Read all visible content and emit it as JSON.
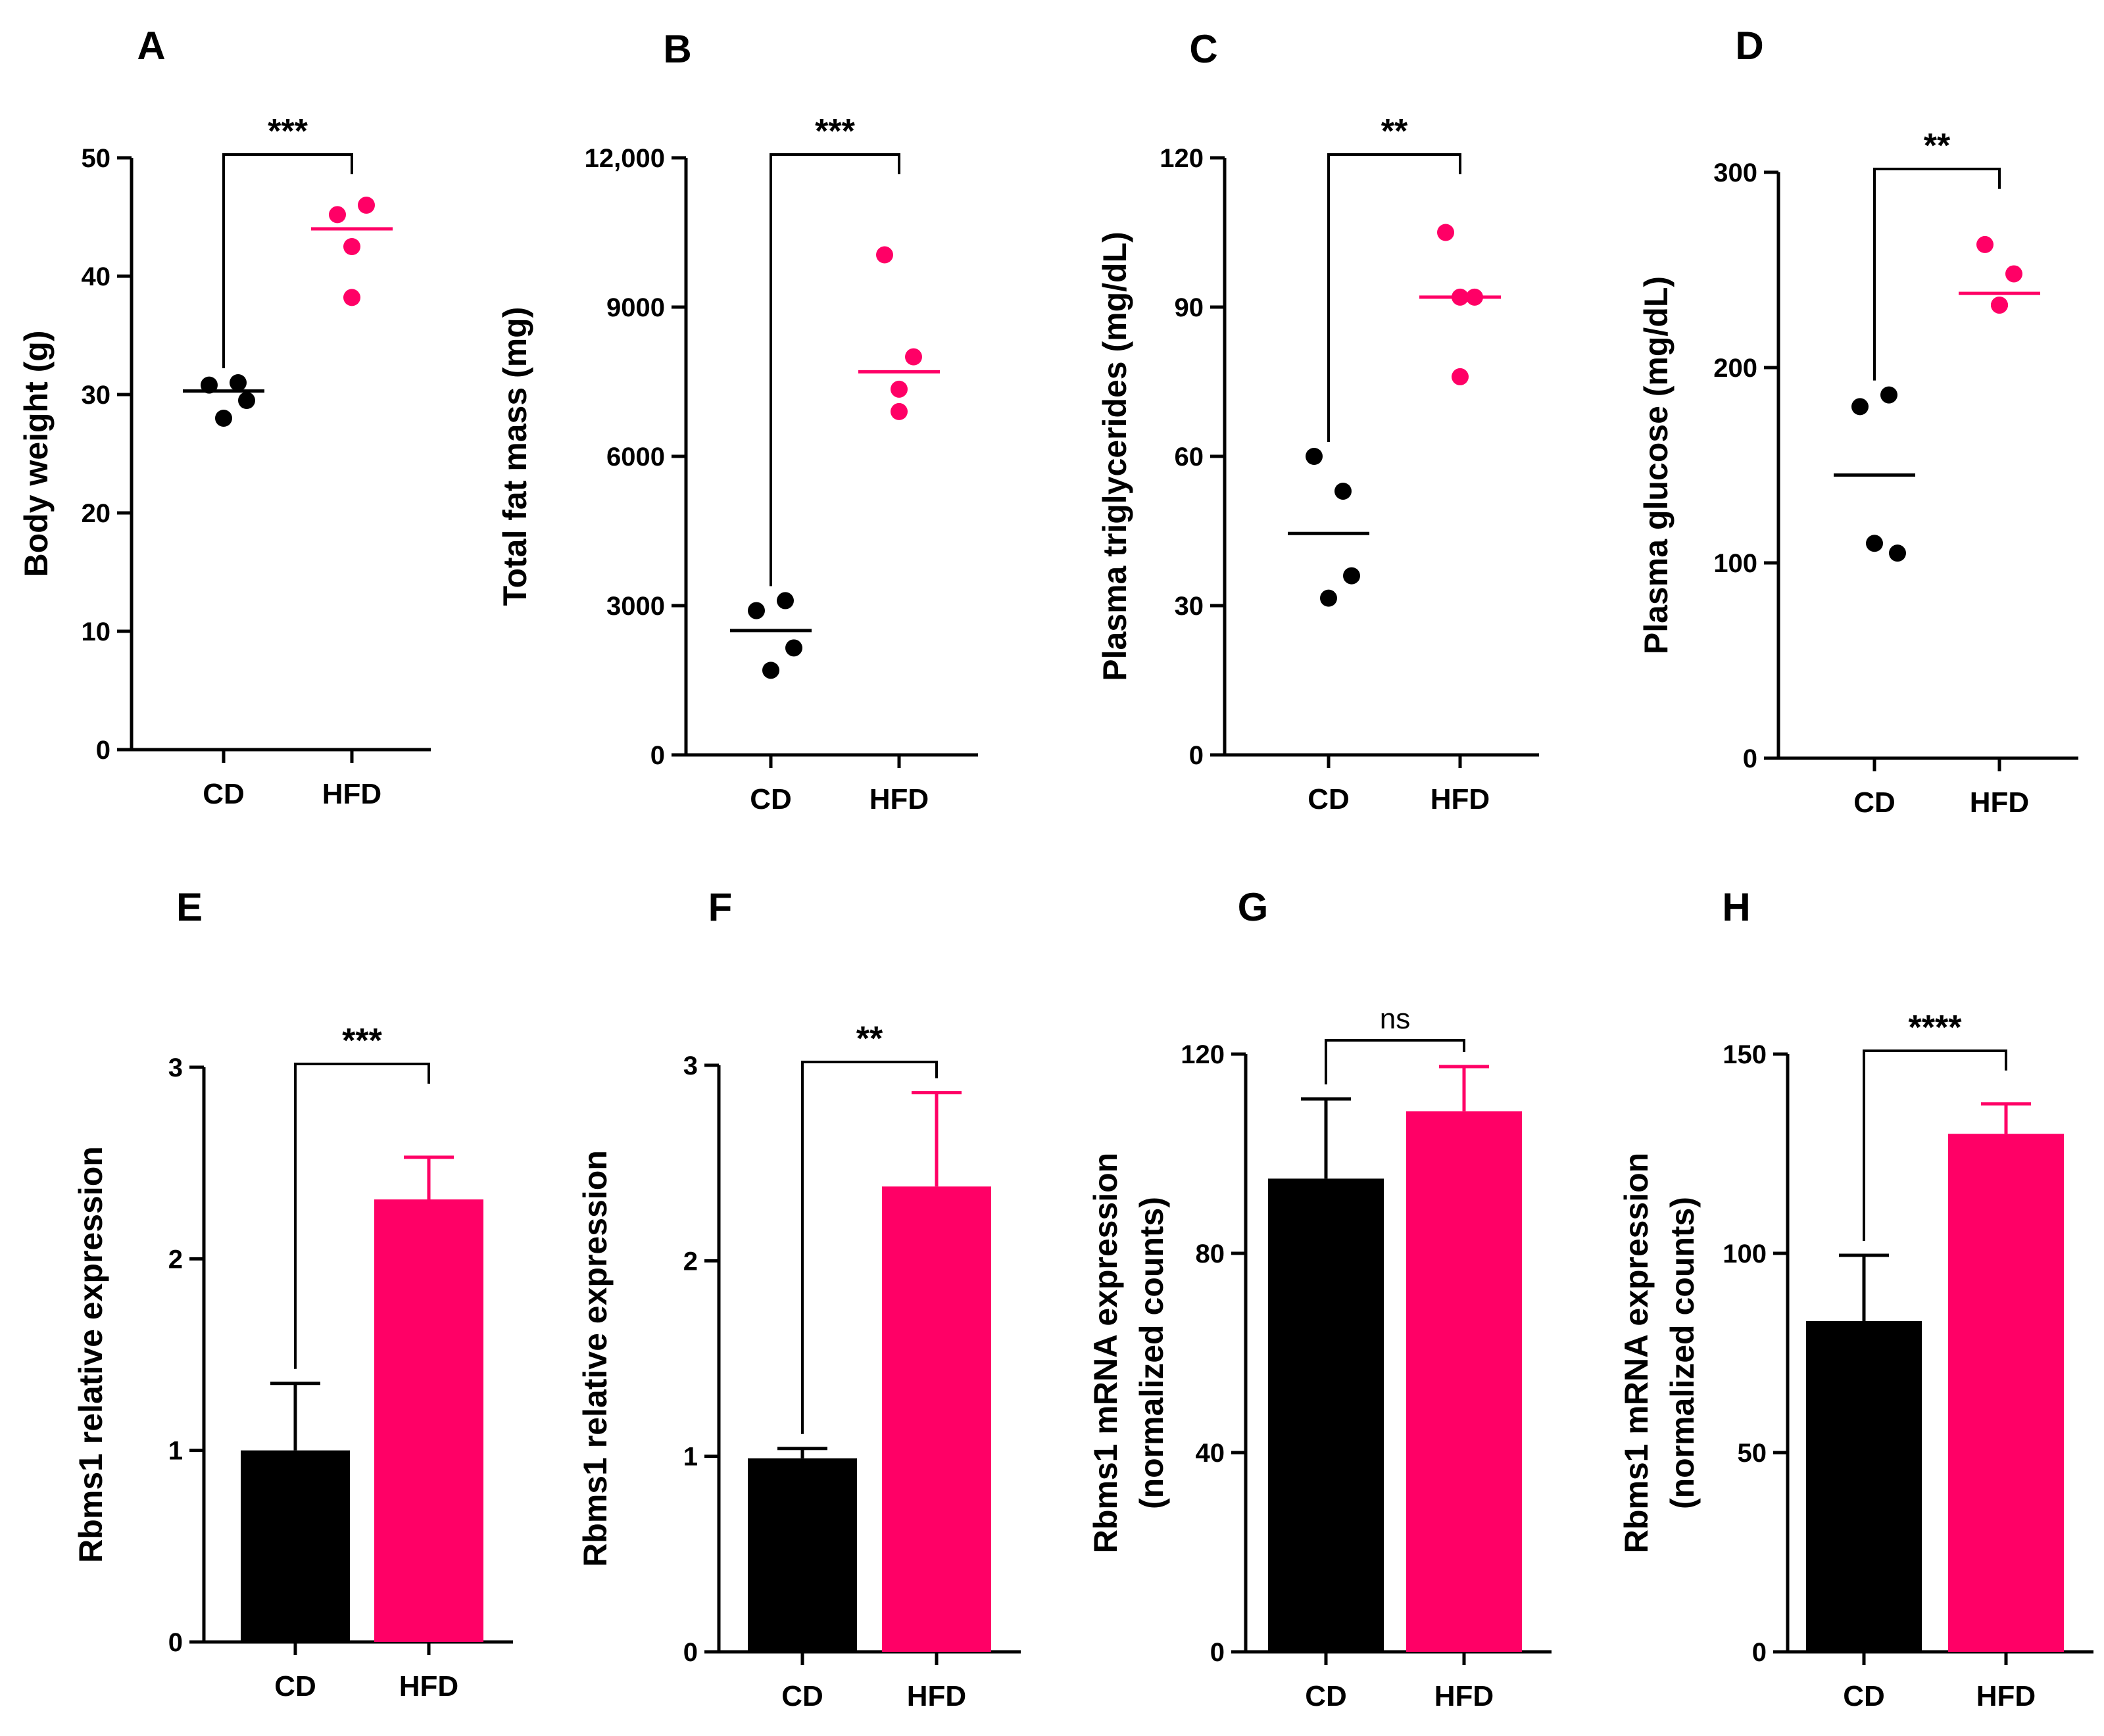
{
  "colors": {
    "cd": "#000000",
    "hfd": "#ff0066",
    "axis": "#000000"
  },
  "chart_data": [
    {
      "id": "A",
      "type": "scatter",
      "ylabel": "Body weight (g)",
      "categories": [
        "CD",
        "HFD"
      ],
      "yticks": [
        "0",
        "10",
        "20",
        "30",
        "40",
        "50"
      ],
      "ylim": [
        0,
        50
      ],
      "tick_values": [
        0,
        10,
        20,
        30,
        40,
        50
      ],
      "points": [
        [
          30.8,
          31.0,
          29.5,
          28.0
        ],
        [
          45.2,
          46.0,
          42.5,
          38.2
        ]
      ],
      "means": [
        30.3,
        44.0
      ],
      "significance": "***"
    },
    {
      "id": "B",
      "type": "scatter",
      "ylabel": "Total fat mass (mg)",
      "categories": [
        "CD",
        "HFD"
      ],
      "yticks": [
        "0",
        "3000",
        "6000",
        "9000",
        "12,000"
      ],
      "ylim": [
        0,
        12000
      ],
      "tick_values": [
        0,
        3000,
        6000,
        9000,
        12000
      ],
      "points": [
        [
          2900,
          3100,
          2150,
          1700
        ],
        [
          10050,
          8000,
          7350,
          6900
        ]
      ],
      "means": [
        2500,
        7700
      ],
      "significance": "***"
    },
    {
      "id": "C",
      "type": "scatter",
      "ylabel": "Plasma triglycerides (mg/dL)",
      "categories": [
        "CD",
        "HFD"
      ],
      "yticks": [
        "0",
        "30",
        "60",
        "90",
        "120"
      ],
      "ylim": [
        0,
        120
      ],
      "tick_values": [
        0,
        30,
        60,
        90,
        120
      ],
      "points": [
        [
          60,
          53,
          36,
          31.5
        ],
        [
          105,
          92,
          92,
          76
        ]
      ],
      "means": [
        44.5,
        92
      ],
      "significance": "**"
    },
    {
      "id": "D",
      "type": "scatter",
      "ylabel": "Plasma glucose (mg/dL)",
      "categories": [
        "CD",
        "HFD"
      ],
      "yticks": [
        "0",
        "100",
        "200",
        "300"
      ],
      "ylim": [
        0,
        300
      ],
      "tick_values": [
        0,
        100,
        200,
        300
      ],
      "points": [
        [
          180,
          186,
          105,
          110
        ],
        [
          263,
          248,
          232,
          232
        ]
      ],
      "means": [
        145,
        238
      ],
      "significance": "**"
    },
    {
      "id": "E",
      "type": "bar",
      "ylabel": "Rbms1 relative expression",
      "categories": [
        "CD",
        "HFD"
      ],
      "yticks": [
        "0",
        "1",
        "2",
        "3"
      ],
      "ylim": [
        0,
        3
      ],
      "tick_values": [
        0,
        1,
        2,
        3
      ],
      "values": [
        1.0,
        2.31
      ],
      "errors": [
        0.35,
        0.22
      ],
      "significance": "***"
    },
    {
      "id": "F",
      "type": "bar",
      "ylabel": "Rbms1 relative expression",
      "categories": [
        "CD",
        "HFD"
      ],
      "yticks": [
        "0",
        "1",
        "2",
        "3"
      ],
      "ylim": [
        0,
        3
      ],
      "tick_values": [
        0,
        1,
        2,
        3
      ],
      "values": [
        0.99,
        2.38
      ],
      "errors": [
        0.05,
        0.48
      ],
      "significance": "**"
    },
    {
      "id": "G",
      "type": "bar",
      "ylabel": "Rbms1 mRNA expression (normalized counts)",
      "ylabel_lines": [
        "Rbms1 mRNA expression",
        "(normalized counts)"
      ],
      "categories": [
        "CD",
        "HFD"
      ],
      "yticks": [
        "0",
        "40",
        "80",
        "120"
      ],
      "ylim": [
        0,
        120
      ],
      "tick_values": [
        0,
        40,
        80,
        120
      ],
      "values": [
        95,
        108.5
      ],
      "errors": [
        16,
        9
      ],
      "significance": "ns"
    },
    {
      "id": "H",
      "type": "bar",
      "ylabel": "Rbms1 mRNA expression (normalized counts)",
      "ylabel_lines": [
        "Rbms1 mRNA expression",
        "(normalized counts)"
      ],
      "categories": [
        "CD",
        "HFD"
      ],
      "yticks": [
        "0",
        "50",
        "100",
        "150"
      ],
      "ylim": [
        0,
        150
      ],
      "tick_values": [
        0,
        50,
        100,
        150
      ],
      "values": [
        83,
        130
      ],
      "errors": [
        16.5,
        7.5
      ],
      "significance": "****"
    }
  ]
}
